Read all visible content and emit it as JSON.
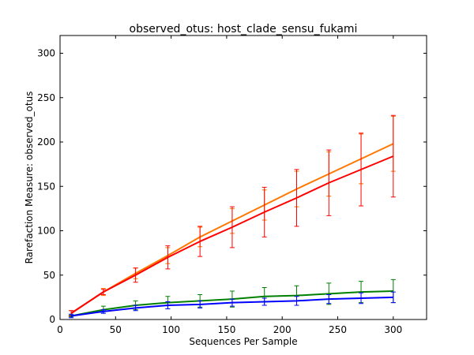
{
  "chart_data": {
    "type": "line",
    "title": "observed_otus: host_clade_sensu_fukami",
    "xlabel": "Sequences Per Sample",
    "ylabel": "Rarefaction Measure: observed_otus",
    "xlim": [
      0,
      330
    ],
    "ylim": [
      0,
      320
    ],
    "x_ticks": [
      0,
      50,
      100,
      150,
      200,
      250,
      300
    ],
    "y_ticks": [
      0,
      50,
      100,
      150,
      200,
      250,
      300
    ],
    "grid": false,
    "legend": "none",
    "x": [
      10,
      39,
      68,
      97,
      126,
      155,
      184,
      213,
      242,
      271,
      300
    ],
    "series": [
      {
        "color": "#ff7700",
        "values": [
          7,
          31,
          52,
          72,
          93,
          111,
          129,
          147,
          164,
          181,
          198
        ],
        "err": [
          3,
          4,
          6,
          9,
          11,
          14,
          17,
          20,
          25,
          28,
          31
        ]
      },
      {
        "color": "#ff0000",
        "values": [
          7,
          31,
          50,
          70,
          88,
          104,
          121,
          137,
          154,
          169,
          184
        ],
        "err": [
          3,
          3,
          8,
          13,
          17,
          23,
          28,
          32,
          37,
          41,
          46
        ]
      },
      {
        "color": "#008000",
        "values": [
          4,
          11,
          16,
          19,
          21,
          23,
          26,
          27,
          29,
          31,
          32
        ],
        "err": [
          1,
          4,
          5,
          7,
          7,
          9,
          10,
          11,
          12,
          12,
          13
        ]
      },
      {
        "color": "#0000ff",
        "values": [
          4,
          9,
          13,
          16,
          17,
          19,
          20,
          21,
          23,
          24,
          25
        ],
        "err": [
          2,
          2,
          3,
          4,
          4,
          4,
          4,
          5,
          5,
          6,
          6
        ]
      }
    ]
  }
}
